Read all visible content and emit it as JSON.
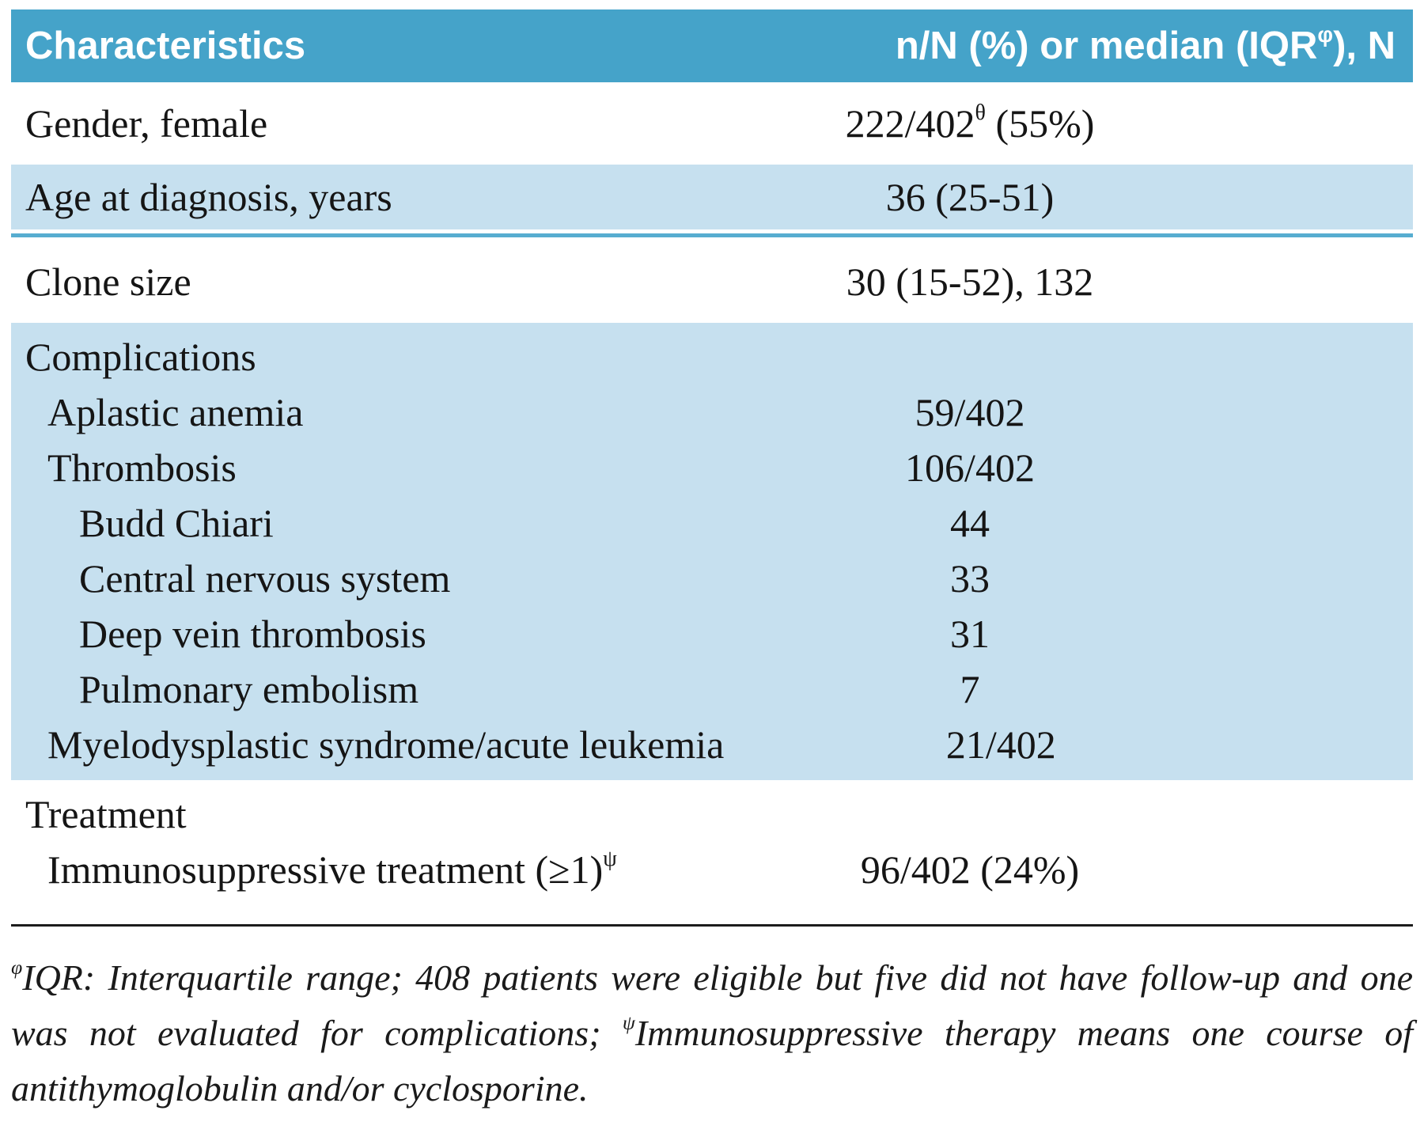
{
  "page": {
    "colors": {
      "header_bg": "#45a3c9",
      "band_bg": "#c6e0ef",
      "thin_rule": "#57add0",
      "footnote_rule": "#1c1c1c",
      "text": "#151515"
    }
  },
  "header": {
    "col1": "Characteristics",
    "col2_pre": "n/N (%) or median (IQR",
    "col2_sup": "φ",
    "col2_post": "), N"
  },
  "rows": [
    {
      "label": "Gender, female",
      "value": "222/402",
      "value_sup": "θ",
      "value_post": " (55%)",
      "band": "white",
      "indent": 0,
      "tall": true
    },
    {
      "label": "Age at diagnosis, years",
      "value": "36 (25-51)",
      "band": "blue",
      "indent": 0,
      "single": true,
      "rule_below": true
    },
    {
      "label": "Clone size",
      "value": "30 (15-52), 132",
      "band": "white",
      "indent": 0,
      "tall": true
    },
    {
      "label": "Complications",
      "band": "blue",
      "indent": 0,
      "group_top": true
    },
    {
      "label": "Aplastic anemia",
      "value": "59/402",
      "band": "blue",
      "indent": 1
    },
    {
      "label": "Thrombosis",
      "value": "106/402",
      "band": "blue",
      "indent": 1
    },
    {
      "label": "Budd Chiari",
      "value": "44",
      "band": "blue",
      "indent": 2
    },
    {
      "label": "Central nervous system",
      "value": "33",
      "band": "blue",
      "indent": 2
    },
    {
      "label": "Deep vein thrombosis",
      "value": "31",
      "band": "blue",
      "indent": 2
    },
    {
      "label": "Pulmonary embolism",
      "value": "7",
      "band": "blue",
      "indent": 2
    },
    {
      "label": "Myelodysplastic syndrome/acute leukemia",
      "value": "21/402",
      "band": "blue",
      "indent": 1,
      "group_bottom": true
    },
    {
      "label": "Treatment",
      "band": "white",
      "indent": 0,
      "group_top": true
    },
    {
      "label": "Immunosuppressive treatment (≥1)",
      "label_sup": "ψ",
      "value": "96/402 (24%)",
      "band": "white",
      "indent": 1
    }
  ],
  "footnote": {
    "sup1": "φ",
    "part1": "IQR: Interquartile range; 408 patients were eligible but five did not have follow-up and one was not evaluated for complications; ",
    "sup2": "ψ",
    "part2": "Immunosuppressive therapy means one course of antithymoglobulin and/or cyclosporine."
  }
}
